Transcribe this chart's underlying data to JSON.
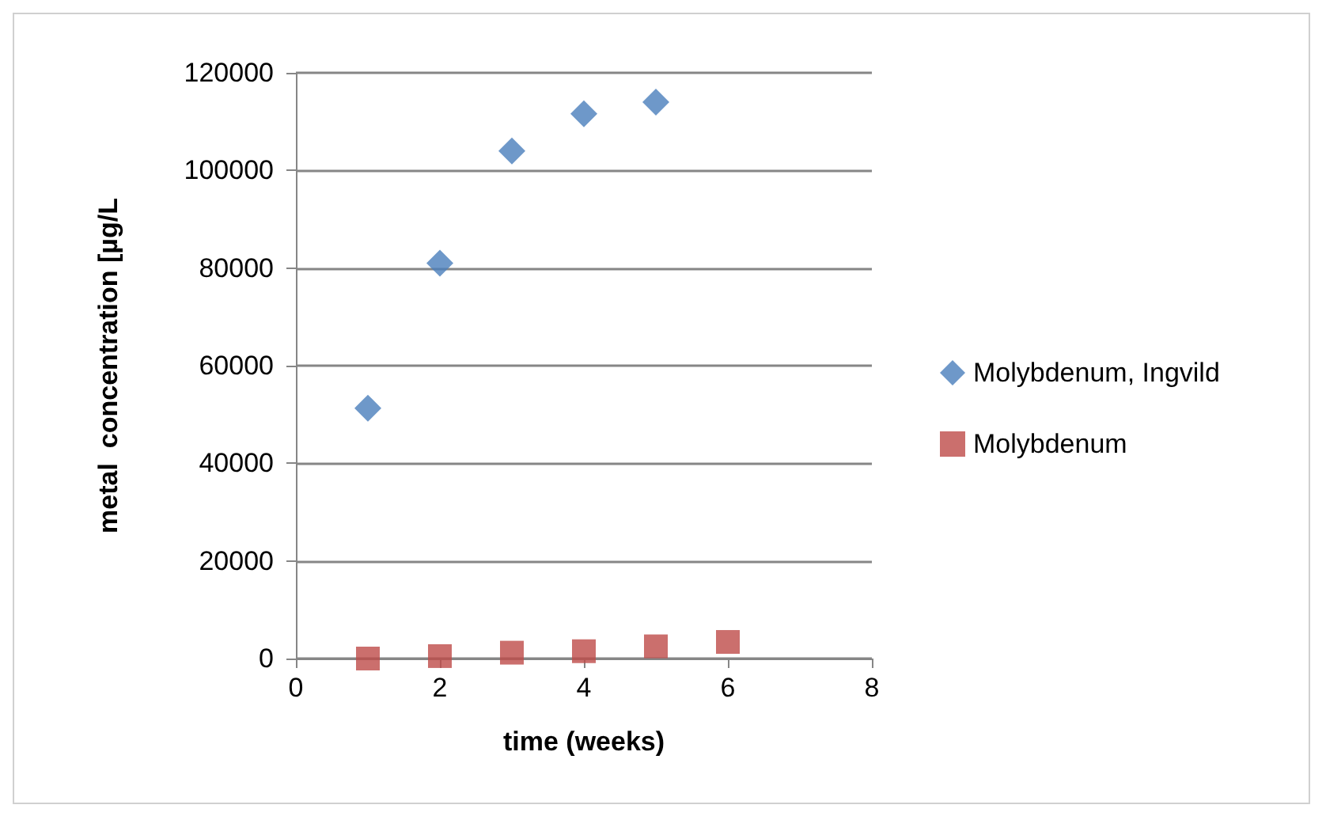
{
  "chart_data": {
    "type": "scatter",
    "xlabel": "time (weeks)",
    "ylabel": "metal  concentration [µg/L",
    "xlim": [
      0,
      8
    ],
    "xticks": [
      0,
      2,
      4,
      6,
      8
    ],
    "ylim": [
      0,
      120000
    ],
    "yticks": [
      0,
      20000,
      40000,
      60000,
      80000,
      100000,
      120000
    ],
    "grid": "y",
    "legend": "right",
    "series": [
      {
        "name": "Molybdenum, Ingvild",
        "color": "#4a7ebb",
        "marker": "diamond",
        "x": [
          1,
          2,
          3,
          4,
          5
        ],
        "values": [
          51300,
          81000,
          104000,
          111600,
          114000
        ]
      },
      {
        "name": "Molybdenum",
        "color": "#be4b48",
        "marker": "square",
        "x": [
          1,
          2,
          3,
          4,
          5,
          6
        ],
        "values": [
          0,
          500,
          1200,
          1500,
          2500,
          3400
        ]
      }
    ]
  }
}
